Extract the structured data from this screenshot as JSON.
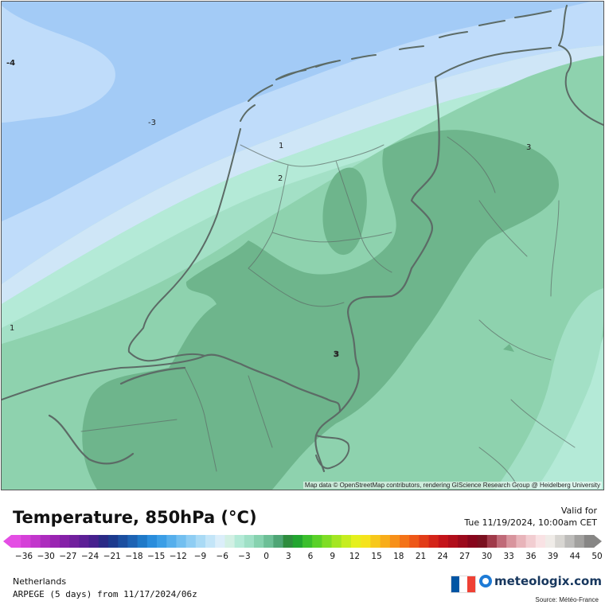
{
  "map": {
    "attribution": "Map data © OpenStreetMap contributors, rendering GIScience Research Group @ Heidelberg University",
    "contour_labels": [
      "-4",
      "-3",
      "1",
      "2",
      "1",
      "3",
      "3"
    ],
    "colors": {
      "sea_cold": "#a3cbf6",
      "sea_light": "#bfdcfa",
      "band_pale": "#cfe6f7",
      "green_pale": "#b4ead7",
      "green_light": "#a3e0c6",
      "green_mid": "#8ed2ae",
      "green_dark": "#6eb58c",
      "border": "#5c6b66"
    }
  },
  "header": {
    "title": "Temperature, 850hPa (°C)",
    "valid_label": "Valid for",
    "valid_time": "Tue 11/19/2024, 10:00am CET"
  },
  "scale": {
    "labels": [
      "-36",
      "-30",
      "-27",
      "-24",
      "-21",
      "-18",
      "-15",
      "-12",
      "-9",
      "-6",
      "-3",
      "0",
      "3",
      "6",
      "9",
      "12",
      "15",
      "18",
      "21",
      "24",
      "27",
      "30",
      "33",
      "36",
      "39",
      "44",
      "50"
    ],
    "colors": [
      "#e44ee4",
      "#d540d8",
      "#c236cc",
      "#ad2cbe",
      "#9a24b2",
      "#8520a8",
      "#71209e",
      "#5c1f96",
      "#46208e",
      "#2a2a86",
      "#1c3a8e",
      "#1b4fa0",
      "#1d63b4",
      "#1f79c8",
      "#2a8ddc",
      "#3b9ee6",
      "#56afec",
      "#72bff0",
      "#8ecdf3",
      "#a9daf5",
      "#c3e5f8",
      "#dbeefa",
      "#d2f0e4",
      "#b4ead7",
      "#9fe0c6",
      "#86d2af",
      "#6cbf96",
      "#4ea575",
      "#2e8d3e",
      "#22a530",
      "#3bbf2c",
      "#5ad128",
      "#7fdd25",
      "#a4e622",
      "#c6ed1f",
      "#e5f01d",
      "#f5e31c",
      "#f7c81b",
      "#f8ad1a",
      "#f79019",
      "#f47318",
      "#ee5718",
      "#e23c18",
      "#d42419",
      "#c4141a",
      "#b10e1b",
      "#9c0a1c",
      "#87061c",
      "#7a101f",
      "#a03a4a",
      "#c06a78",
      "#d8949d",
      "#e8b4ba",
      "#f2cdd1",
      "#f9e2e4",
      "#f0ece8",
      "#d8d6d2",
      "#bdbcba",
      "#a2a19f",
      "#878685"
    ]
  },
  "footer": {
    "region": "Netherlands",
    "model": "ARPEGE (5 days) from 11/17/2024/06z",
    "brand": "meteologix.com",
    "brand_icon": "meteologix-logo-icon",
    "flag_icon": "france-flag-icon",
    "flag_colors": [
      "#0055a4",
      "#ffffff",
      "#ef4135"
    ],
    "source": "Source: Météo-France"
  }
}
